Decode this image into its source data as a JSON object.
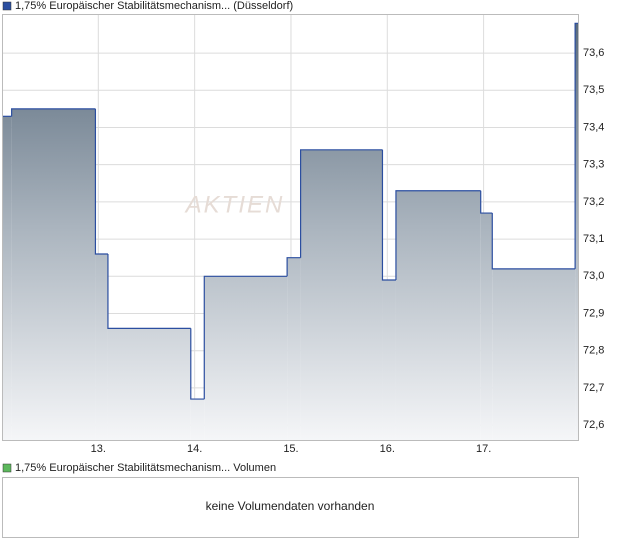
{
  "chart_data": {
    "type": "step-area",
    "title": "1,75% Europäischer Stabilitätsmechanism... (Düsseldorf)",
    "x": [
      12.0,
      12.1,
      12.97,
      13.1,
      13.96,
      14.1,
      14.96,
      15.1,
      15.95,
      16.09,
      16.97,
      17.09,
      17.95
    ],
    "values": [
      73.43,
      73.45,
      73.06,
      72.86,
      72.67,
      73.0,
      73.05,
      73.34,
      72.99,
      73.23,
      73.17,
      73.02,
      73.68
    ],
    "color": "#2b4ea0",
    "xlim": [
      12.0,
      17.98
    ],
    "xticks": [
      {
        "value": 13,
        "label": "13."
      },
      {
        "value": 14,
        "label": "14."
      },
      {
        "value": 15,
        "label": "15."
      },
      {
        "value": 16,
        "label": "16."
      },
      {
        "value": 17,
        "label": "17."
      }
    ],
    "ylim": [
      72.56,
      73.705
    ],
    "yticks": [
      {
        "value": 72.6,
        "label": "72,6"
      },
      {
        "value": 72.7,
        "label": "72,7"
      },
      {
        "value": 72.8,
        "label": "72,8"
      },
      {
        "value": 72.9,
        "label": "72,9"
      },
      {
        "value": 73.0,
        "label": "73,0"
      },
      {
        "value": 73.1,
        "label": "73,1"
      },
      {
        "value": 73.2,
        "label": "73,2"
      },
      {
        "value": 73.3,
        "label": "73,3"
      },
      {
        "value": 73.4,
        "label": "73,4"
      },
      {
        "value": 73.5,
        "label": "73,5"
      },
      {
        "value": 73.6,
        "label": "73,6"
      }
    ],
    "grid": true,
    "watermark": "AKTIEN"
  },
  "volume": {
    "title": "1,75% Europäischer Stabilitätsmechanism... Volumen",
    "message": "keine Volumendaten vorhanden",
    "color": "#5cb85c"
  }
}
